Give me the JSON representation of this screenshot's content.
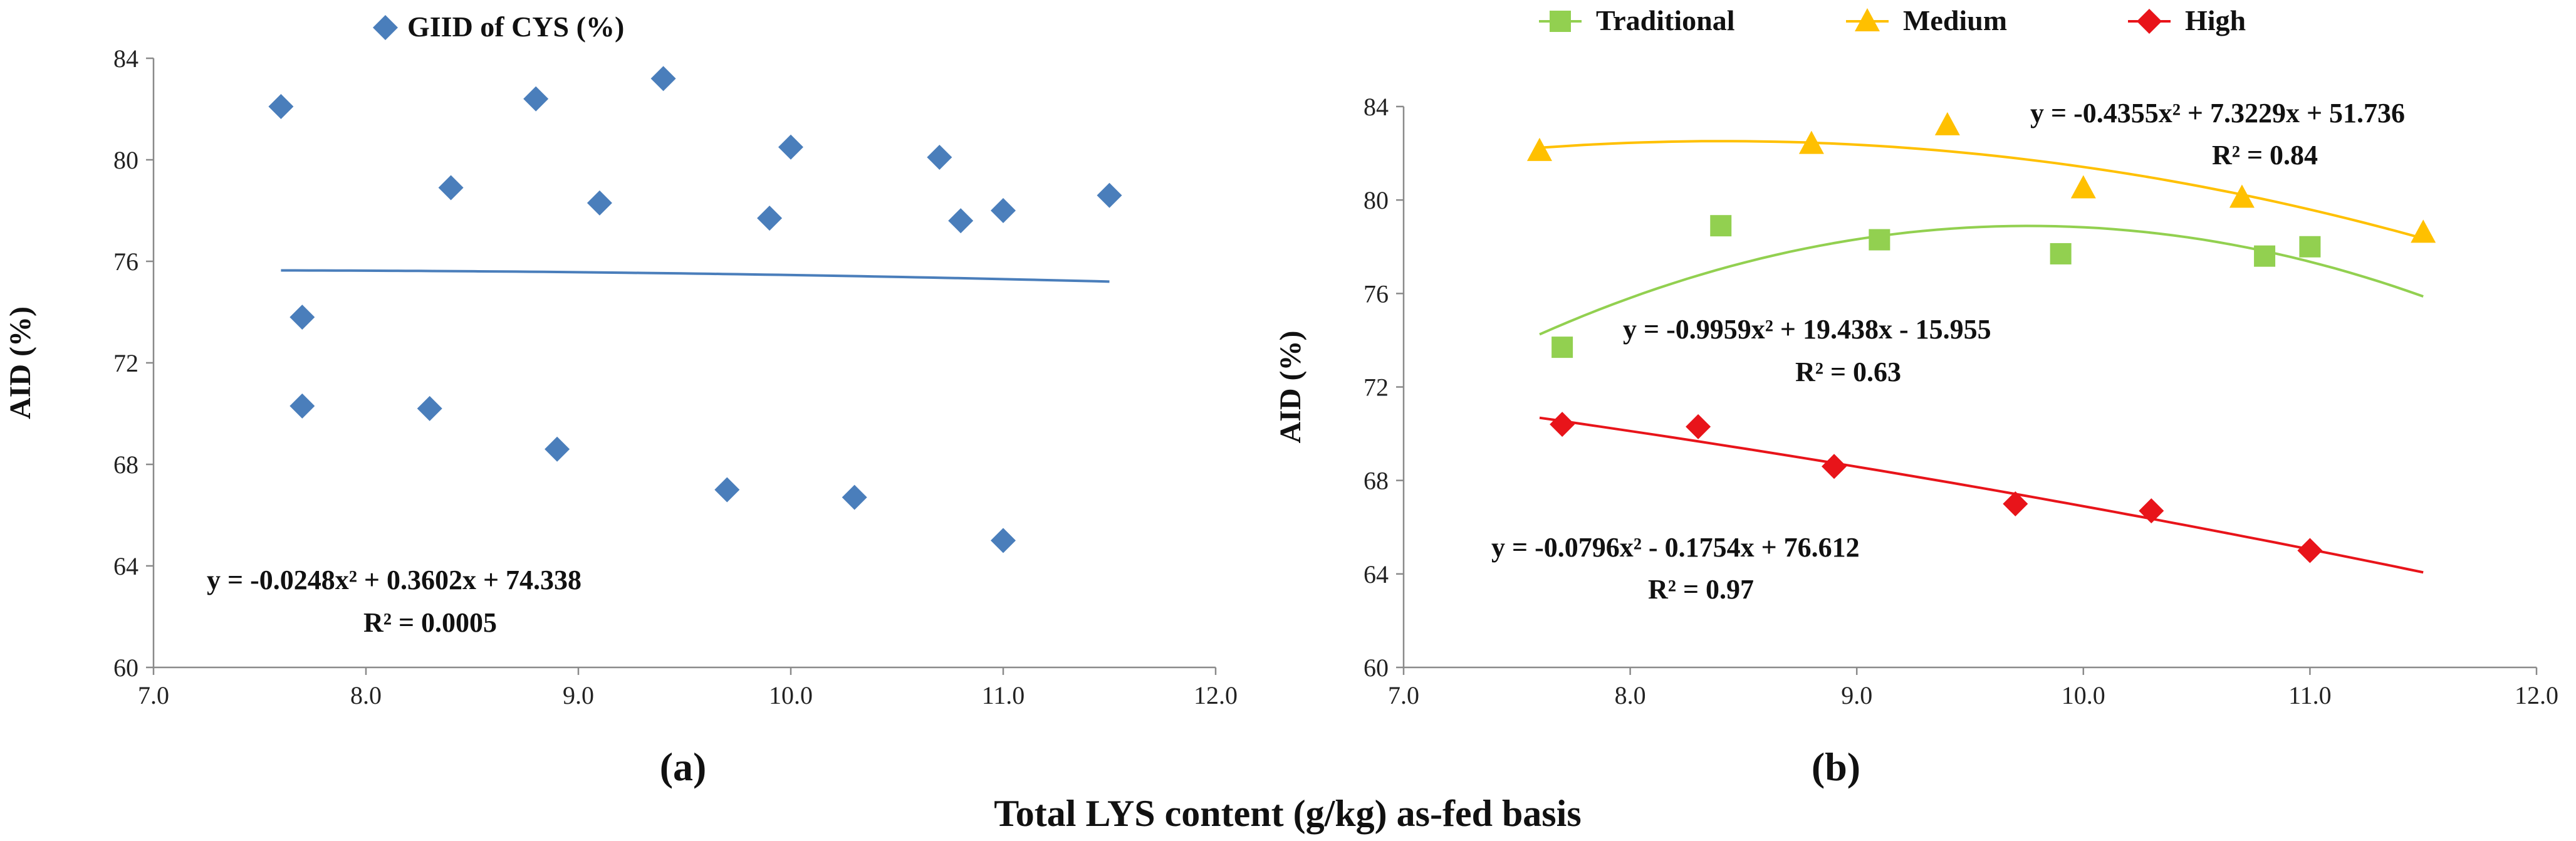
{
  "figure": {
    "shared_xlabel": "Total LYS content (g/kg) as-fed basis"
  },
  "chart_data": [
    {
      "type": "scatter",
      "panel_label": "(a)",
      "title": "",
      "xlabel": "",
      "ylabel": "AID (%)",
      "xlim": [
        7.0,
        12.0
      ],
      "ylim": [
        60,
        84
      ],
      "xticks": [
        "7.0",
        "8.0",
        "9.0",
        "10.0",
        "11.0",
        "12.0"
      ],
      "yticks": [
        "60",
        "64",
        "68",
        "72",
        "76",
        "80",
        "84"
      ],
      "legend": "top-center",
      "series": [
        {
          "name": "GIID of CYS (%)",
          "color": "#4a7ebb",
          "marker": "diamond",
          "x": [
            7.6,
            7.7,
            7.7,
            8.3,
            8.4,
            8.8,
            8.9,
            9.1,
            9.4,
            9.7,
            9.9,
            10.0,
            10.3,
            10.7,
            10.8,
            11.0,
            11.0,
            11.5
          ],
          "y": [
            82.1,
            73.8,
            70.3,
            70.2,
            78.9,
            82.4,
            68.6,
            78.3,
            83.2,
            67.0,
            77.7,
            80.5,
            66.7,
            80.1,
            77.6,
            78.0,
            65.0,
            78.6
          ]
        }
      ],
      "trendlines": [
        {
          "series": "GIID of CYS (%)",
          "color": "#4a7ebb",
          "coef": [
            -0.0248,
            0.3602,
            74.338
          ],
          "x_range": [
            7.6,
            11.5
          ],
          "equation": "y = -0.0248x² + 0.3602x + 74.338",
          "r2": "R² = 0.0005"
        }
      ]
    },
    {
      "type": "scatter",
      "panel_label": "(b)",
      "title": "",
      "xlabel": "",
      "ylabel": "AID (%)",
      "xlim": [
        7.0,
        12.0
      ],
      "ylim": [
        60,
        84
      ],
      "xticks": [
        "7.0",
        "8.0",
        "9.0",
        "10.0",
        "11.0",
        "12.0"
      ],
      "yticks": [
        "60",
        "64",
        "68",
        "72",
        "76",
        "80",
        "84"
      ],
      "legend": "top",
      "series": [
        {
          "name": "Traditional",
          "color": "#92d050",
          "marker": "square",
          "x": [
            7.7,
            8.4,
            9.1,
            9.9,
            10.8,
            11.0
          ],
          "y": [
            73.7,
            78.9,
            78.3,
            77.7,
            77.6,
            78.0
          ]
        },
        {
          "name": "Medium",
          "color": "#ffc000",
          "marker": "triangle",
          "x": [
            7.6,
            8.8,
            9.4,
            10.0,
            10.7,
            11.5
          ],
          "y": [
            82.1,
            82.4,
            83.2,
            80.5,
            80.1,
            78.6
          ]
        },
        {
          "name": "High",
          "color": "#e8141a",
          "marker": "diamond",
          "x": [
            7.7,
            8.3,
            8.9,
            9.7,
            10.3,
            11.0
          ],
          "y": [
            70.4,
            70.3,
            68.6,
            67.0,
            66.7,
            65.0
          ]
        }
      ],
      "trendlines": [
        {
          "series": "Medium",
          "color": "#ffc000",
          "coef": [
            -0.4355,
            7.3229,
            51.736
          ],
          "x_range": [
            7.6,
            11.5
          ],
          "equation": "y = -0.4355x² + 7.3229x + 51.736",
          "r2": "R² = 0.84"
        },
        {
          "series": "Traditional",
          "color": "#92d050",
          "coef": [
            -0.9959,
            19.438,
            -15.955
          ],
          "x_range": [
            7.6,
            11.5
          ],
          "equation": "y = -0.9959x² + 19.438x - 15.955",
          "r2": "R² = 0.63"
        },
        {
          "series": "High",
          "color": "#e8141a",
          "coef": [
            -0.0796,
            -0.1754,
            76.612
          ],
          "x_range": [
            7.6,
            11.5
          ],
          "equation": "y = -0.0796x² - 0.1754x + 76.612",
          "r2": "R² = 0.97"
        }
      ]
    }
  ]
}
